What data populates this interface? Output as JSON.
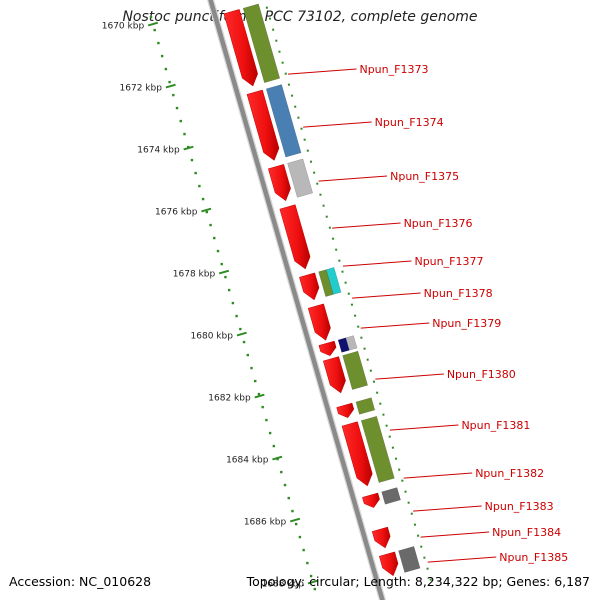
{
  "title": "Nostoc punctiforme PCC 73102, complete genome",
  "footer": {
    "accession": "Accession: NC_010628",
    "summary": "Topology: circular; Length: 8,234,322 bp; Genes: 6,187"
  },
  "ruler": {
    "unit": "kbp",
    "labels": [
      "1670 kbp",
      "1672 kbp",
      "1674 kbp",
      "1676 kbp",
      "1678 kbp",
      "1680 kbp",
      "1682 kbp",
      "1684 kbp",
      "1686 kbp",
      "1688 kbp"
    ]
  },
  "colors": {
    "forward_cds": "#ee1111",
    "label": "#cc0000",
    "backbone": "#8a8a8a",
    "tick": "#2e8b22",
    "cog_olive": "#6e8f2e",
    "cog_blue": "#4a7fb3",
    "cog_grey": "#b8b8b8",
    "cog_cyan": "#22cccc",
    "cog_navy": "#101070",
    "cog_darkgrey": "#6a6a6a"
  },
  "gene_labels": [
    "Npun_F1373",
    "Npun_F1374",
    "Npun_F1375",
    "Npun_F1376",
    "Npun_F1377",
    "Npun_F1378",
    "Npun_F1379",
    "Npun_F1380",
    "Npun_F1381",
    "Npun_F1382",
    "Npun_F1383",
    "Npun_F1384",
    "Npun_F1385"
  ],
  "cds_features": [
    {
      "start": 1670.3,
      "end": 1672.7,
      "cog": "olive"
    },
    {
      "start": 1672.9,
      "end": 1675.1,
      "cog": "blue"
    },
    {
      "start": 1675.3,
      "end": 1676.4,
      "cog": "grey"
    },
    {
      "start": 1676.6,
      "end": 1678.6,
      "cog": "none"
    },
    {
      "start": 1678.8,
      "end": 1679.6,
      "cog": "olive_cyan"
    },
    {
      "start": 1679.8,
      "end": 1680.9,
      "cog": "none"
    },
    {
      "start": 1681.0,
      "end": 1681.4,
      "cog": "navy_grey"
    },
    {
      "start": 1681.5,
      "end": 1682.6,
      "cog": "olive"
    },
    {
      "start": 1683.0,
      "end": 1683.4,
      "cog": "olive"
    },
    {
      "start": 1683.6,
      "end": 1685.6,
      "cog": "olive"
    },
    {
      "start": 1685.9,
      "end": 1686.3,
      "cog": "darkgrey"
    },
    {
      "start": 1687.0,
      "end": 1687.6,
      "cog": "none"
    },
    {
      "start": 1687.8,
      "end": 1688.5,
      "cog": "darkgrey"
    }
  ]
}
